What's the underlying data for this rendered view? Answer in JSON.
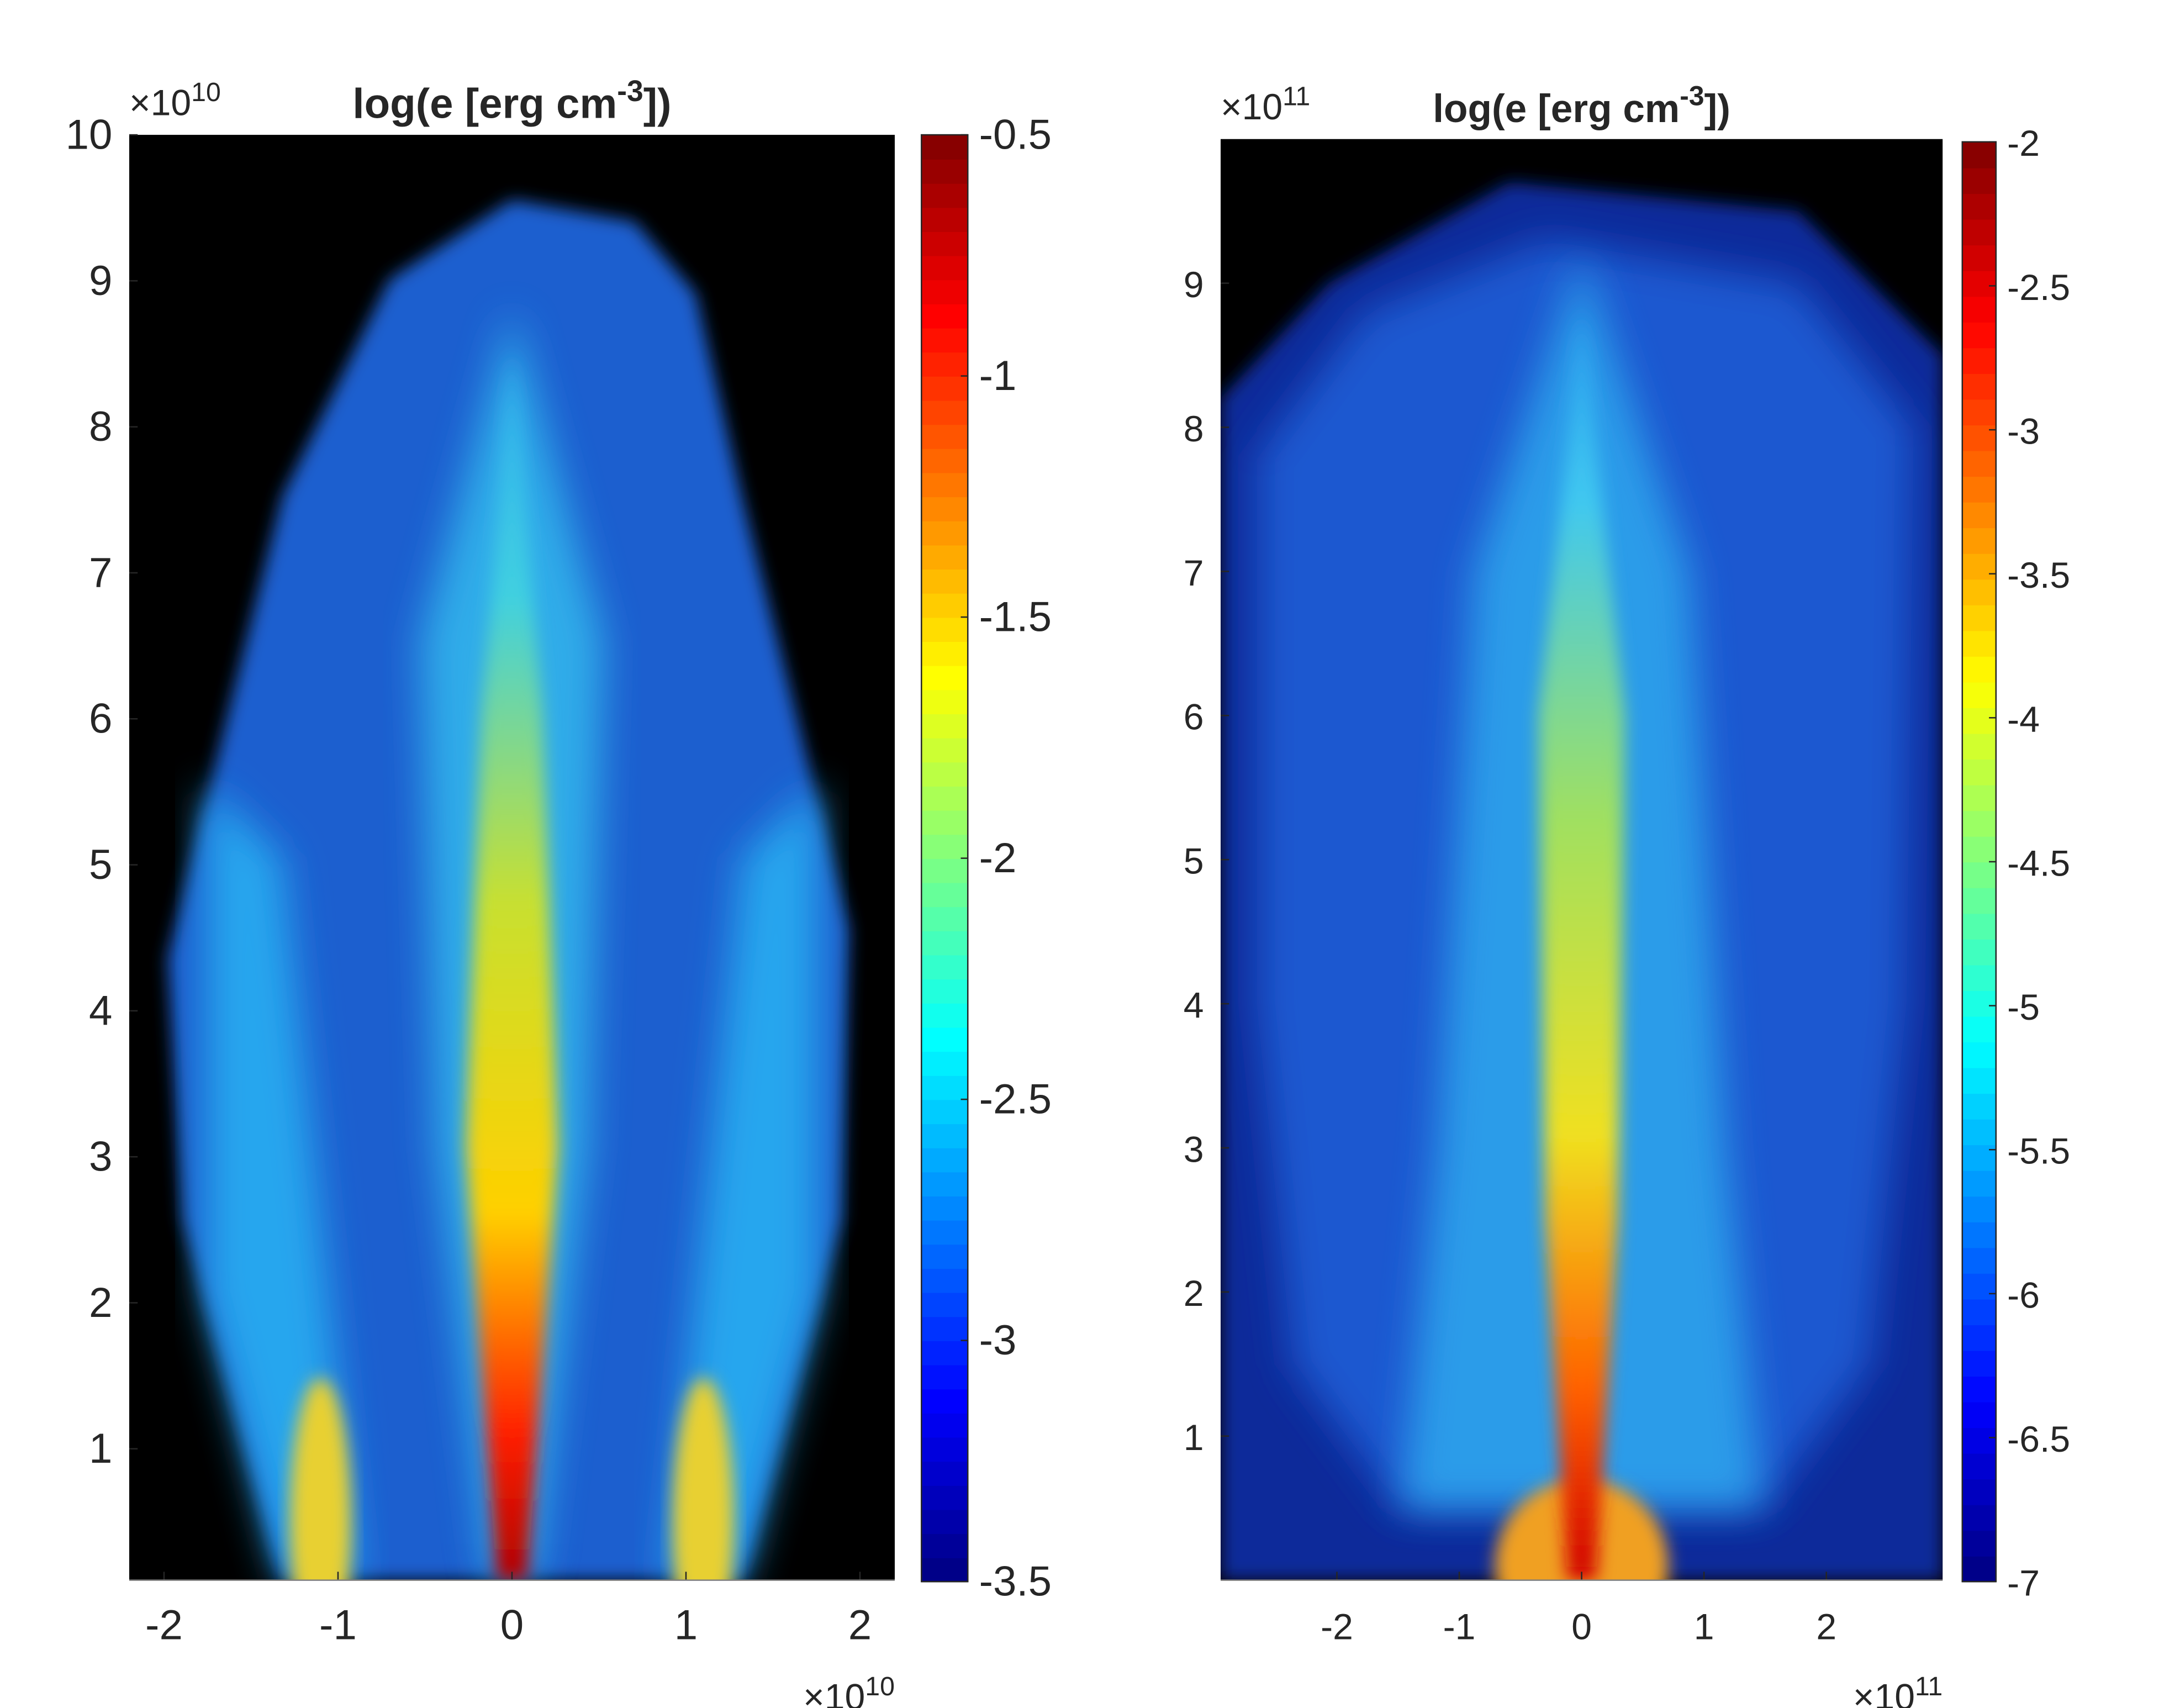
{
  "chart_data": [
    {
      "type": "heatmap",
      "title": [
        "log(e [erg cm",
        "-3",
        "])"
      ],
      "y_multiplier": {
        "base": "×10",
        "exp": "10"
      },
      "x_multiplier": {
        "base": "×10",
        "exp": "10"
      },
      "xlim": [
        -2.2,
        2.2
      ],
      "xticks": [
        -2,
        -1,
        0,
        1,
        2
      ],
      "ylim": [
        0.1,
        10
      ],
      "yticks": [
        1,
        2,
        3,
        4,
        5,
        6,
        7,
        8,
        9,
        10
      ],
      "colormap": "jet",
      "clim": [
        -3.5,
        -0.5
      ],
      "cticks": [
        -3.5,
        -3,
        -2.5,
        -2,
        -1.5,
        -1,
        -0.5
      ]
    },
    {
      "type": "heatmap",
      "title": [
        "log(e [erg cm",
        "-3",
        "])"
      ],
      "y_multiplier": {
        "base": "×10",
        "exp": "11"
      },
      "x_multiplier": {
        "base": "×10",
        "exp": "11"
      },
      "xlim": [
        -2.95,
        2.95
      ],
      "xticks": [
        -2,
        -1,
        0,
        1,
        2
      ],
      "ylim": [
        0,
        10
      ],
      "yticks": [
        1,
        2,
        3,
        4,
        5,
        6,
        7,
        8,
        9
      ],
      "colormap": "jet",
      "clim": [
        -7,
        -2
      ],
      "cticks": [
        -7,
        -6.5,
        -6,
        -5.5,
        -5,
        -4.5,
        -4,
        -3.5,
        -3,
        -2.5,
        -2
      ]
    }
  ]
}
